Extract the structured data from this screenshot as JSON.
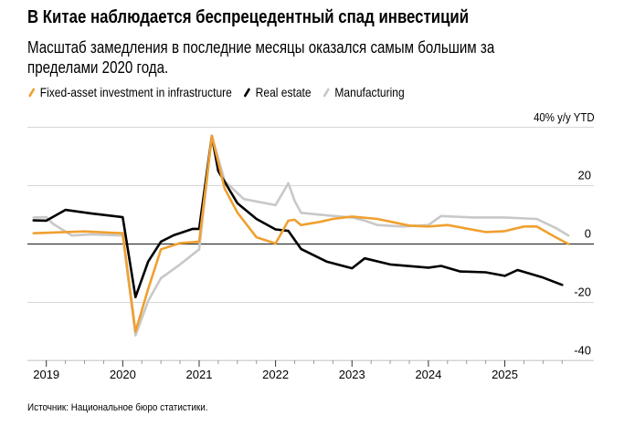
{
  "title": "В Китае наблюдается беспрецедентный спад инвестиций",
  "subtitle_lines": [
    "Масштаб замедления в последние месяцы оказался самым большим за",
    "пределами 2020 года."
  ],
  "source": "Источник: Национальное бюро статистики.",
  "chart_data": {
    "type": "line",
    "title": "В Китае наблюдается беспрецедентный спад инвестиций",
    "ylabel": "40% y/y YTD",
    "ylim": [
      -40,
      40
    ],
    "yticks": [
      "40% y/y YTD",
      "20",
      "0",
      "-20",
      "-40"
    ],
    "ytick_values": [
      40,
      20,
      0,
      -20,
      -40
    ],
    "xticks": [
      "2019",
      "2020",
      "2021",
      "2022",
      "2023",
      "2024",
      "2025"
    ],
    "grid": true,
    "legend": "top-left",
    "series": [
      {
        "name": "Fixed-asset investment in infrastructure",
        "color": "#f0a030",
        "points": [
          [
            "2018-10",
            3.7
          ],
          [
            "2019-06",
            4.3
          ],
          [
            "2019-12",
            3.7
          ],
          [
            "2020-02",
            -30
          ],
          [
            "2020-04",
            -15.4
          ],
          [
            "2020-06",
            -1.8
          ],
          [
            "2020-09",
            0.3
          ],
          [
            "2020-12",
            0.8
          ],
          [
            "2021-02",
            37
          ],
          [
            "2021-04",
            19
          ],
          [
            "2021-06",
            10.8
          ],
          [
            "2021-09",
            2.3
          ],
          [
            "2021-12",
            0.2
          ],
          [
            "2022-02",
            8
          ],
          [
            "2022-03",
            8.3
          ],
          [
            "2022-04",
            6.5
          ],
          [
            "2022-07",
            7.6
          ],
          [
            "2022-09",
            8.6
          ],
          [
            "2022-12",
            9.4
          ],
          [
            "2023-04",
            8.6
          ],
          [
            "2023-09",
            6.3
          ],
          [
            "2023-12",
            6
          ],
          [
            "2024-03",
            6.5
          ],
          [
            "2024-09",
            4.1
          ],
          [
            "2024-12",
            4.4
          ],
          [
            "2025-03",
            6
          ],
          [
            "2025-05",
            6
          ],
          [
            "2025-08",
            2.3
          ],
          [
            "2025-10",
            0
          ]
        ]
      },
      {
        "name": "Real estate",
        "color": "#000000",
        "points": [
          [
            "2018-10",
            8.1
          ],
          [
            "2018-12",
            8
          ],
          [
            "2019-03",
            11.7
          ],
          [
            "2019-07",
            10.5
          ],
          [
            "2019-12",
            9.2
          ],
          [
            "2020-02",
            -18.2
          ],
          [
            "2020-04",
            -6
          ],
          [
            "2020-06",
            0.8
          ],
          [
            "2020-08",
            3
          ],
          [
            "2020-11",
            5.2
          ],
          [
            "2020-12",
            5.2
          ],
          [
            "2021-02",
            37
          ],
          [
            "2021-03",
            25
          ],
          [
            "2021-06",
            14
          ],
          [
            "2021-09",
            8.6
          ],
          [
            "2021-12",
            5
          ],
          [
            "2022-02",
            4.5
          ],
          [
            "2022-04",
            -1.7
          ],
          [
            "2022-08",
            -6
          ],
          [
            "2022-12",
            -8.3
          ],
          [
            "2023-02",
            -4.9
          ],
          [
            "2023-06",
            -7
          ],
          [
            "2023-12",
            -8.1
          ],
          [
            "2024-02",
            -7.5
          ],
          [
            "2024-05",
            -9.4
          ],
          [
            "2024-09",
            -9.7
          ],
          [
            "2024-12",
            -10.9
          ],
          [
            "2025-02",
            -8.9
          ],
          [
            "2025-06",
            -11.5
          ],
          [
            "2025-09",
            -14
          ]
        ]
      },
      {
        "name": "Manufacturing",
        "color": "#c8c8c8",
        "points": [
          [
            "2018-10",
            9.1
          ],
          [
            "2018-12",
            9.2
          ],
          [
            "2019-01",
            7
          ],
          [
            "2019-04",
            2.9
          ],
          [
            "2019-07",
            3.3
          ],
          [
            "2019-12",
            2.9
          ],
          [
            "2020-02",
            -31.3
          ],
          [
            "2020-04",
            -19.5
          ],
          [
            "2020-06",
            -11.7
          ],
          [
            "2020-09",
            -7
          ],
          [
            "2020-12",
            -1.8
          ],
          [
            "2021-02",
            37
          ],
          [
            "2021-04",
            21.6
          ],
          [
            "2021-07",
            15.4
          ],
          [
            "2021-12",
            13.3
          ],
          [
            "2022-02",
            20.8
          ],
          [
            "2022-03",
            14.8
          ],
          [
            "2022-04",
            10.7
          ],
          [
            "2022-08",
            9.8
          ],
          [
            "2022-12",
            9.1
          ],
          [
            "2023-02",
            8
          ],
          [
            "2023-04",
            6.5
          ],
          [
            "2023-08",
            6
          ],
          [
            "2023-12",
            6.5
          ],
          [
            "2024-02",
            9.6
          ],
          [
            "2024-07",
            9.1
          ],
          [
            "2024-12",
            9.1
          ],
          [
            "2025-05",
            8.6
          ],
          [
            "2025-08",
            5.5
          ],
          [
            "2025-10",
            2.9
          ]
        ]
      }
    ]
  }
}
